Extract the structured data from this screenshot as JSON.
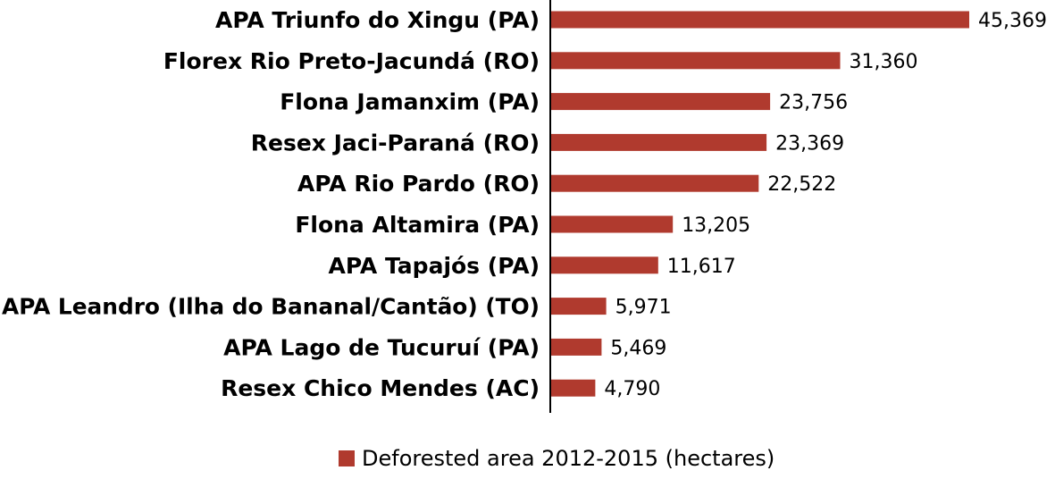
{
  "chart_data": {
    "type": "bar",
    "orientation": "horizontal",
    "categories": [
      "APA Triunfo do Xingu (PA)",
      "Florex Rio Preto-Jacundá (RO)",
      "Flona Jamanxim (PA)",
      "Resex Jaci-Paraná (RO)",
      "APA Rio Pardo (RO)",
      "Flona Altamira (PA)",
      "APA Tapajós (PA)",
      "APA Leandro (Ilha do Bananal/Cantão) (TO)",
      "APA Lago de Tucuruí (PA)",
      "Resex Chico Mendes (AC)"
    ],
    "series": [
      {
        "name": "Deforested area 2012-2015 (hectares)",
        "values": [
          45369,
          31360,
          23756,
          23369,
          22522,
          13205,
          11617,
          5971,
          5469,
          4790
        ],
        "value_labels": [
          "45,369",
          "31,360",
          "23,756",
          "23,369",
          "22,522",
          "13,205",
          "11,617",
          "5,971",
          "5,469",
          "4,790"
        ],
        "color": "#B03A2E"
      }
    ],
    "xlim": [
      0,
      45369
    ],
    "grid": false,
    "legend_position": "bottom"
  }
}
